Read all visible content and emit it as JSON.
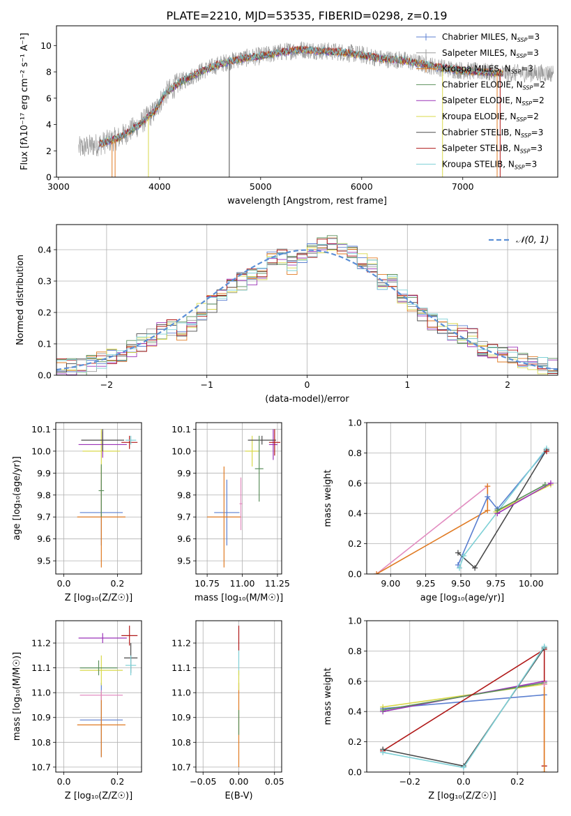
{
  "figure": {
    "title": "PLATE=2210, MJD=53535, FIBERID=0298, z=0.19"
  },
  "colors": {
    "chabrier_miles": "#5b7fd0",
    "salpeter_miles": "#9b9b9b",
    "kroupa_miles": "#e07a22",
    "chabrier_elodie": "#5a8f5a",
    "salpeter_elodie": "#9a32b8",
    "kroupa_elodie": "#d8d84a",
    "chabrier_stelib": "#4a4a4a",
    "salpeter_stelib": "#b01818",
    "kroupa_stelib": "#7ed0d6",
    "pink": "#e28cc0",
    "grid": "#b0b0b0",
    "normal_curve": "#5b8fd6"
  },
  "chart_data": [
    {
      "id": "spectrum",
      "type": "line",
      "title": "PLATE=2210, MJD=53535, FIBERID=0298, z=0.19",
      "xlabel": "wavelength [Angstrom, rest frame]",
      "ylabel": "Flux [fλ10⁻¹⁷ erg cm⁻² s⁻¹ A⁻¹]",
      "xlim": [
        2980,
        7940
      ],
      "ylim": [
        0,
        11.5
      ],
      "xticks": [
        3000,
        4000,
        5000,
        6000,
        7000
      ],
      "yticks": [
        0,
        2,
        4,
        6,
        8,
        10
      ],
      "grid": false,
      "legend_position": "right",
      "legend": [
        {
          "label": "Chabrier MILES, N",
          "sub": "SSP",
          "suffix": "=3",
          "color_key": "chabrier_miles"
        },
        {
          "label": "Salpeter MILES, N",
          "sub": "SSP",
          "suffix": "=3",
          "color_key": "salpeter_miles"
        },
        {
          "label": "Kroupa MILES, N",
          "sub": "SSP",
          "suffix": "=3",
          "color_key": "kroupa_miles"
        },
        {
          "label": "Chabrier ELODIE, N",
          "sub": "SSP",
          "suffix": "=2",
          "color_key": "chabrier_elodie"
        },
        {
          "label": "Salpeter ELODIE, N",
          "sub": "SSP",
          "suffix": "=2",
          "color_key": "salpeter_elodie"
        },
        {
          "label": "Kroupa ELODIE, N",
          "sub": "SSP",
          "suffix": "=2",
          "color_key": "kroupa_elodie"
        },
        {
          "label": "Chabrier STELIB, N",
          "sub": "SSP",
          "suffix": "=3",
          "color_key": "chabrier_stelib"
        },
        {
          "label": "Salpeter STELIB, N",
          "sub": "SSP",
          "suffix": "=3",
          "color_key": "salpeter_stelib"
        },
        {
          "label": "Kroupa STELIB, N",
          "sub": "SSP",
          "suffix": "=3",
          "color_key": "kroupa_stelib"
        }
      ],
      "continuum": {
        "x": [
          3200,
          3400,
          3600,
          3800,
          3950,
          4050,
          4200,
          4400,
          4600,
          4800,
          5000,
          5200,
          5400,
          5600,
          5800,
          6000,
          6200,
          6400,
          6600,
          6800,
          7000,
          7200,
          7400
        ],
        "y": [
          2.2,
          2.5,
          3.0,
          4.0,
          5.0,
          6.3,
          7.2,
          8.0,
          8.6,
          9.0,
          9.2,
          9.5,
          9.7,
          9.6,
          9.5,
          9.3,
          9.0,
          8.9,
          8.6,
          8.3,
          8.1,
          8.0,
          7.9
        ]
      },
      "model_x_range": [
        3400,
        7400
      ],
      "gray_noise_x_range": [
        3200,
        7900
      ],
      "noise_amplitude": 0.7,
      "vertical_drops": [
        {
          "x": 3530,
          "color_key": "kroupa_miles"
        },
        {
          "x": 3560,
          "color_key": "kroupa_miles"
        },
        {
          "x": 3890,
          "color_key": "kroupa_elodie"
        },
        {
          "x": 4690,
          "color_key": "chabrier_stelib"
        },
        {
          "x": 6800,
          "color_key": "kroupa_elodie"
        },
        {
          "x": 7340,
          "color_key": "kroupa_miles"
        },
        {
          "x": 7370,
          "color_key": "salpeter_stelib"
        }
      ]
    },
    {
      "id": "residuals",
      "type": "bar",
      "xlabel": "(data-model)/error",
      "ylabel": "Normed distribution",
      "xlim": [
        -2.5,
        2.5
      ],
      "ylim": [
        0,
        0.48
      ],
      "xticks": [
        -2,
        -1,
        0,
        1,
        2
      ],
      "yticks": [
        0.0,
        0.1,
        0.2,
        0.3,
        0.4
      ],
      "grid": true,
      "legend_position": "upper-right",
      "legend_label": "𝒩(0, 1)",
      "bins": [
        -2.5,
        -2.4,
        -2.3,
        -2.2,
        -2.1,
        -2.0,
        -1.9,
        -1.8,
        -1.7,
        -1.6,
        -1.5,
        -1.4,
        -1.3,
        -1.2,
        -1.1,
        -1.0,
        -0.9,
        -0.8,
        -0.7,
        -0.6,
        -0.5,
        -0.4,
        -0.3,
        -0.2,
        -0.1,
        0.0,
        0.1,
        0.2,
        0.3,
        0.4,
        0.5,
        0.6,
        0.7,
        0.8,
        0.9,
        1.0,
        1.1,
        1.2,
        1.3,
        1.4,
        1.5,
        1.6,
        1.7,
        1.8,
        1.9,
        2.0,
        2.1,
        2.2,
        2.3,
        2.4,
        2.5
      ],
      "base_counts": [
        0.022,
        0.025,
        0.028,
        0.035,
        0.045,
        0.055,
        0.07,
        0.085,
        0.105,
        0.12,
        0.14,
        0.15,
        0.14,
        0.17,
        0.2,
        0.23,
        0.25,
        0.28,
        0.3,
        0.31,
        0.33,
        0.37,
        0.38,
        0.35,
        0.37,
        0.4,
        0.41,
        0.42,
        0.4,
        0.39,
        0.36,
        0.35,
        0.3,
        0.3,
        0.25,
        0.23,
        0.2,
        0.17,
        0.16,
        0.14,
        0.13,
        0.12,
        0.09,
        0.08,
        0.07,
        0.06,
        0.05,
        0.04,
        0.03,
        0.025
      ],
      "series_color_keys": [
        "chabrier_miles",
        "salpeter_miles",
        "kroupa_miles",
        "chabrier_elodie",
        "salpeter_elodie",
        "kroupa_elodie",
        "chabrier_stelib",
        "salpeter_stelib",
        "kroupa_stelib"
      ]
    },
    {
      "id": "z_age",
      "type": "scatter",
      "xlabel": "Z [log₁₀(Z/Z☉)]",
      "ylabel": "age  [log₁₀(age/yr)]",
      "xlim": [
        -0.03,
        0.29
      ],
      "ylim": [
        9.44,
        10.13
      ],
      "xticks": [
        0.0,
        0.2
      ],
      "yticks": [
        9.5,
        9.6,
        9.7,
        9.8,
        9.9,
        10.0,
        10.1
      ],
      "grid": true,
      "points": [
        {
          "x": 0.14,
          "y": 9.72,
          "xerr": 0.08,
          "yerr": 0.15,
          "color_key": "chabrier_miles"
        },
        {
          "x": 0.14,
          "y": 9.7,
          "xerr": 0.09,
          "yerr": 0.23,
          "color_key": "kroupa_miles"
        },
        {
          "x": 0.14,
          "y": 10.0,
          "xerr": 0.07,
          "yerr": 0.1,
          "color_key": "kroupa_elodie"
        },
        {
          "x": 0.145,
          "y": 10.03,
          "xerr": 0.09,
          "yerr": 0.06,
          "color_key": "salpeter_elodie"
        },
        {
          "x": 0.145,
          "y": 10.05,
          "xerr": 0.08,
          "yerr": 0.05,
          "color_key": "chabrier_stelib"
        },
        {
          "x": 0.245,
          "y": 10.04,
          "xerr": 0.03,
          "yerr": 0.03,
          "color_key": "salpeter_stelib"
        },
        {
          "x": 0.25,
          "y": 10.05,
          "xerr": 0.02,
          "yerr": 0.02,
          "color_key": "kroupa_stelib"
        },
        {
          "x": 0.14,
          "y": 9.82,
          "xerr": 0.01,
          "yerr": 0.12,
          "color_key": "chabrier_elodie"
        }
      ]
    },
    {
      "id": "mass_age",
      "type": "scatter",
      "xlabel": "mass [log₁₀(M/M☉)]",
      "ylabel": "",
      "xlim": [
        10.67,
        11.28
      ],
      "ylim": [
        9.44,
        10.13
      ],
      "xticks": [
        10.75,
        11.0,
        11.25
      ],
      "yticks": [
        9.5,
        9.6,
        9.7,
        9.8,
        9.9,
        10.0,
        10.1
      ],
      "grid": true,
      "points": [
        {
          "x": 10.89,
          "y": 9.72,
          "xerr": 0.09,
          "yerr": 0.15,
          "color_key": "chabrier_miles"
        },
        {
          "x": 10.87,
          "y": 9.7,
          "xerr": 0.12,
          "yerr": 0.23,
          "color_key": "kroupa_miles"
        },
        {
          "x": 10.99,
          "y": 9.76,
          "xerr": 0.01,
          "yerr": 0.12,
          "color_key": "pink"
        },
        {
          "x": 11.07,
          "y": 10.0,
          "xerr": 0.05,
          "yerr": 0.07,
          "color_key": "kroupa_elodie"
        },
        {
          "x": 11.22,
          "y": 10.03,
          "xerr": 0.03,
          "yerr": 0.07,
          "color_key": "salpeter_elodie"
        },
        {
          "x": 11.14,
          "y": 10.05,
          "xerr": 0.1,
          "yerr": 0.02,
          "color_key": "chabrier_stelib"
        },
        {
          "x": 11.23,
          "y": 10.04,
          "xerr": 0.04,
          "yerr": 0.06,
          "color_key": "salpeter_stelib"
        },
        {
          "x": 11.12,
          "y": 9.92,
          "xerr": 0.03,
          "yerr": 0.15,
          "color_key": "chabrier_elodie"
        }
      ]
    },
    {
      "id": "age_weight",
      "type": "line",
      "xlabel": "age  [log₁₀(age/yr)]",
      "ylabel": "mass weight",
      "xlim": [
        8.83,
        10.19
      ],
      "ylim": [
        0,
        1
      ],
      "xticks": [
        9.0,
        9.25,
        9.5,
        9.75,
        10.0
      ],
      "yticks": [
        0.0,
        0.2,
        0.4,
        0.6,
        0.8,
        1.0
      ],
      "grid": true,
      "series": [
        {
          "color_key": "pink",
          "x": [
            8.9,
            9.69
          ],
          "y": [
            0.0,
            0.58
          ]
        },
        {
          "color_key": "kroupa_miles",
          "x": [
            8.9,
            9.69,
            9.69
          ],
          "y": [
            0.0,
            0.42,
            0.58
          ]
        },
        {
          "color_key": "chabrier_miles",
          "x": [
            9.48,
            9.69,
            9.76,
            10.11
          ],
          "y": [
            0.06,
            0.51,
            0.43,
            0.82
          ]
        },
        {
          "color_key": "chabrier_stelib",
          "x": [
            9.48,
            9.6,
            10.11
          ],
          "y": [
            0.14,
            0.04,
            0.82
          ]
        },
        {
          "color_key": "kroupa_stelib",
          "x": [
            9.49,
            9.52,
            10.11
          ],
          "y": [
            0.04,
            0.12,
            0.83
          ]
        },
        {
          "color_key": "kroupa_elodie",
          "x": [
            9.75,
            10.14
          ],
          "y": [
            0.41,
            0.59
          ]
        },
        {
          "color_key": "salpeter_elodie",
          "x": [
            9.76,
            10.14
          ],
          "y": [
            0.4,
            0.6
          ]
        },
        {
          "color_key": "chabrier_elodie",
          "x": [
            9.76,
            10.1
          ],
          "y": [
            0.42,
            0.59
          ]
        },
        {
          "color_key": "salpeter_stelib",
          "x": [
            10.11
          ],
          "y": [
            0.81
          ]
        }
      ]
    },
    {
      "id": "z_mass",
      "type": "scatter",
      "xlabel": "Z [log₁₀(Z/Z☉)]",
      "ylabel": "mass [log₁₀(M/M☉)]",
      "xlim": [
        -0.03,
        0.29
      ],
      "ylim": [
        10.68,
        11.29
      ],
      "xticks": [
        0.0,
        0.2
      ],
      "yticks": [
        10.7,
        10.8,
        10.9,
        11.0,
        11.1,
        11.2
      ],
      "grid": true,
      "points": [
        {
          "x": 0.14,
          "y": 10.89,
          "xerr": 0.08,
          "yerr": 0.15,
          "color_key": "chabrier_miles"
        },
        {
          "x": 0.14,
          "y": 10.87,
          "xerr": 0.09,
          "yerr": 0.13,
          "color_key": "kroupa_miles"
        },
        {
          "x": 0.14,
          "y": 10.99,
          "xerr": 0.08,
          "yerr": 0.02,
          "color_key": "pink"
        },
        {
          "x": 0.14,
          "y": 11.09,
          "xerr": 0.08,
          "yerr": 0.06,
          "color_key": "kroupa_elodie"
        },
        {
          "x": 0.145,
          "y": 11.22,
          "xerr": 0.09,
          "yerr": 0.02,
          "color_key": "salpeter_elodie"
        },
        {
          "x": 0.245,
          "y": 11.23,
          "xerr": 0.03,
          "yerr": 0.04,
          "color_key": "salpeter_stelib"
        },
        {
          "x": 0.25,
          "y": 11.14,
          "xerr": 0.025,
          "yerr": 0.06,
          "color_key": "chabrier_stelib"
        },
        {
          "x": 0.25,
          "y": 11.11,
          "xerr": 0.02,
          "yerr": 0.04,
          "color_key": "kroupa_stelib"
        },
        {
          "x": 0.13,
          "y": 11.1,
          "xerr": 0.07,
          "yerr": 0.03,
          "color_key": "chabrier_elodie"
        }
      ]
    },
    {
      "id": "ebv",
      "type": "scatter",
      "xlabel": "E(B-V)",
      "ylabel": "",
      "xlim": [
        -0.06,
        0.06
      ],
      "ylim": [
        10.68,
        11.29
      ],
      "xticks": [
        -0.05,
        0.0,
        0.05
      ],
      "yticks": [
        10.7,
        10.8,
        10.9,
        11.0,
        11.1,
        11.2
      ],
      "grid": true,
      "points": [
        {
          "x": 0.0,
          "y": 10.87,
          "yerr": 0.17,
          "color_key": "kroupa_miles"
        },
        {
          "x": 0.0,
          "y": 11.22,
          "yerr": 0.05,
          "color_key": "salpeter_stelib"
        },
        {
          "x": 0.0,
          "y": 11.12,
          "yerr": 0.05,
          "color_key": "kroupa_stelib"
        },
        {
          "x": 0.0,
          "y": 10.88,
          "yerr": 0.05,
          "color_key": "chabrier_elodie"
        },
        {
          "x": 0.0,
          "y": 11.05,
          "yerr": 0.04,
          "color_key": "kroupa_elodie"
        }
      ]
    },
    {
      "id": "z_weight",
      "type": "line",
      "xlabel": "Z [log₁₀(Z/Z☉)]",
      "ylabel": "mass weight",
      "xlim": [
        -0.36,
        0.35
      ],
      "ylim": [
        0,
        1
      ],
      "xticks": [
        -0.2,
        0.0,
        0.2
      ],
      "yticks": [
        0.0,
        0.2,
        0.4,
        0.6,
        0.8,
        1.0
      ],
      "grid": true,
      "series": [
        {
          "color_key": "chabrier_miles",
          "x": [
            -0.3,
            0.3
          ],
          "y": [
            0.42,
            0.51
          ]
        },
        {
          "color_key": "kroupa_elodie",
          "x": [
            -0.3,
            0.3
          ],
          "y": [
            0.43,
            0.58
          ]
        },
        {
          "color_key": "salpeter_elodie",
          "x": [
            -0.3,
            0.3
          ],
          "y": [
            0.4,
            0.6
          ]
        },
        {
          "color_key": "chabrier_elodie",
          "x": [
            -0.3,
            0.3
          ],
          "y": [
            0.41,
            0.59
          ]
        },
        {
          "color_key": "salpeter_stelib",
          "x": [
            -0.3,
            0.3,
            0.3
          ],
          "y": [
            0.14,
            0.81,
            0.04
          ]
        },
        {
          "color_key": "chabrier_stelib",
          "x": [
            -0.3,
            0.0,
            0.3
          ],
          "y": [
            0.15,
            0.04,
            0.82
          ]
        },
        {
          "color_key": "kroupa_stelib",
          "x": [
            -0.3,
            0.0,
            0.3
          ],
          "y": [
            0.13,
            0.03,
            0.83
          ]
        },
        {
          "color_key": "kroupa_miles",
          "x": [
            0.3,
            0.3
          ],
          "y": [
            0.0,
            0.58
          ]
        },
        {
          "color_key": "pink",
          "x": [
            0.3
          ],
          "y": [
            0.58
          ]
        }
      ]
    }
  ]
}
